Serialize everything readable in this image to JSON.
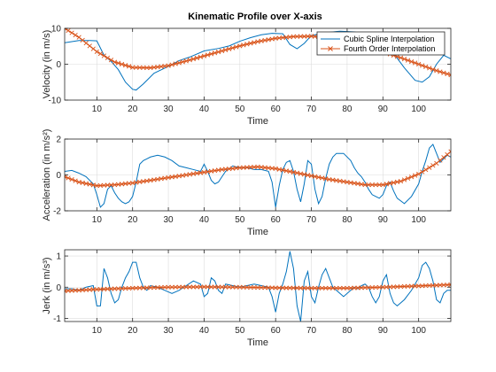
{
  "figure_title": "Kinematic Profile over X-axis",
  "colors": {
    "spline": "#0072BD",
    "fourth": "#D95319",
    "axes": "#262626",
    "grid": "#dcdcdc"
  },
  "legend": {
    "placement": "top-right",
    "entries": [
      "Cubic Spline Interpolation",
      "Fourth Order Interpolation"
    ]
  },
  "chart_data": [
    {
      "type": "line",
      "title": "Kinematic Profile over X-axis",
      "xlabel": "Time",
      "ylabel": "Velocity (in m/s)",
      "xlim": [
        1,
        109
      ],
      "ylim": [
        -10,
        10
      ],
      "xticks": [
        10,
        20,
        30,
        40,
        50,
        60,
        70,
        80,
        90,
        100
      ],
      "yticks": [
        -10,
        0,
        10
      ],
      "grid": true,
      "series": [
        {
          "name": "Cubic Spline Interpolation",
          "x": [
            1,
            5,
            8,
            10,
            12,
            14,
            16,
            18,
            20,
            21,
            23,
            26,
            30,
            33,
            36,
            40,
            44,
            47,
            50,
            53,
            56,
            59,
            62,
            64,
            66,
            68,
            70,
            74,
            78,
            82,
            86,
            90,
            93,
            96,
            99,
            101,
            103,
            105,
            107,
            109
          ],
          "y": [
            6,
            6.6,
            6.6,
            6.5,
            2.5,
            0.8,
            -1.5,
            -5,
            -7,
            -7.2,
            -5.5,
            -2.5,
            -0.6,
            1,
            2,
            3.7,
            4.4,
            5.1,
            6.4,
            7.4,
            8.2,
            8.6,
            8.5,
            5.5,
            4.3,
            5.8,
            8,
            8.8,
            9.2,
            9,
            8.2,
            6.6,
            3,
            -1,
            -4.5,
            -5,
            -3.5,
            0,
            2.5,
            1.5
          ]
        },
        {
          "name": "Fourth Order Interpolation",
          "x": [
            1,
            5,
            10,
            15,
            20,
            25,
            30,
            35,
            40,
            45,
            50,
            55,
            60,
            65,
            70,
            75,
            80,
            85,
            90,
            95,
            100,
            105,
            109
          ],
          "y": [
            10,
            7.5,
            3.5,
            0.6,
            -0.9,
            -1,
            -0.4,
            0.9,
            2.3,
            3.7,
            5.1,
            6.3,
            7.2,
            7.7,
            7.8,
            7.4,
            6.5,
            5.2,
            3.5,
            1.8,
            0,
            -1.8,
            -3
          ]
        }
      ]
    },
    {
      "type": "line",
      "xlabel": "Time",
      "ylabel": "Acceleration (in m/s²)",
      "xlim": [
        1,
        109
      ],
      "ylim": [
        -2,
        2
      ],
      "xticks": [
        10,
        20,
        30,
        40,
        50,
        60,
        70,
        80,
        90,
        100
      ],
      "yticks": [
        -2,
        0,
        2
      ],
      "grid": true,
      "series": [
        {
          "name": "Cubic Spline Interpolation",
          "x": [
            1,
            3,
            5,
            7,
            9,
            10,
            11,
            12,
            13,
            14,
            15,
            16,
            17,
            18,
            19,
            20,
            21,
            22,
            23,
            24,
            25,
            27,
            29,
            31,
            33,
            35,
            37,
            39,
            40,
            41,
            42,
            43,
            44,
            45,
            46,
            48,
            50,
            52,
            54,
            56,
            58,
            59,
            60,
            61,
            62,
            63,
            64,
            65,
            66,
            67,
            68,
            69,
            70,
            71,
            72,
            73,
            74,
            75,
            76,
            77,
            79,
            81,
            82,
            83,
            84,
            85,
            86,
            87,
            88,
            89,
            90,
            91,
            92,
            93,
            94,
            96,
            98,
            100,
            101,
            102,
            103,
            104,
            105,
            106,
            107,
            108,
            109
          ],
          "y": [
            0.2,
            0.25,
            0.1,
            -0.1,
            -0.5,
            -1.1,
            -1.8,
            -1.6,
            -0.8,
            -0.6,
            -1.0,
            -1.3,
            -1.5,
            -1.6,
            -1.5,
            -1.2,
            -0.4,
            0.6,
            0.8,
            0.9,
            1.0,
            1.1,
            1.0,
            0.8,
            0.5,
            0.4,
            0.3,
            0.2,
            0.6,
            0.2,
            -0.3,
            -0.5,
            -0.4,
            -0.1,
            0.2,
            0.5,
            0.4,
            0.4,
            0.3,
            0.3,
            0.2,
            -0.4,
            -1.8,
            -0.6,
            0.3,
            0.7,
            0.8,
            0.2,
            -0.8,
            -1.5,
            -0.5,
            0.8,
            0.6,
            -0.8,
            -1.6,
            -1.2,
            -0.2,
            0.6,
            1.0,
            1.2,
            1.2,
            0.8,
            0.4,
            0.1,
            -0.1,
            -0.4,
            -0.8,
            -1.1,
            -1.2,
            -1.3,
            -1.1,
            -0.6,
            -0.4,
            -0.9,
            -1.3,
            -1.6,
            -1.2,
            -0.5,
            0.2,
            0.8,
            1.5,
            1.7,
            1.2,
            0.7,
            0.9,
            1.1,
            1.0
          ]
        },
        {
          "name": "Fourth Order Interpolation",
          "x": [
            1,
            5,
            10,
            15,
            20,
            25,
            30,
            35,
            40,
            45,
            50,
            55,
            60,
            65,
            70,
            75,
            80,
            85,
            90,
            95,
            100,
            105,
            109
          ],
          "y": [
            -0.1,
            -0.4,
            -0.6,
            -0.55,
            -0.45,
            -0.3,
            -0.15,
            0,
            0.15,
            0.3,
            0.4,
            0.45,
            0.35,
            0.15,
            -0.05,
            -0.25,
            -0.4,
            -0.55,
            -0.55,
            -0.35,
            0.05,
            0.65,
            1.3
          ]
        }
      ]
    },
    {
      "type": "line",
      "xlabel": "Time",
      "ylabel": "Jerk (in m/s³)",
      "xlim": [
        1,
        109
      ],
      "ylim": [
        -1.1,
        1.2
      ],
      "xticks": [
        10,
        20,
        30,
        40,
        50,
        60,
        70,
        80,
        90,
        100
      ],
      "yticks": [
        -1,
        0,
        1
      ],
      "grid": true,
      "series": [
        {
          "name": "Cubic Spline Interpolation",
          "x": [
            1,
            3,
            5,
            7,
            9,
            10,
            11,
            12,
            13,
            14,
            15,
            16,
            17,
            18,
            19,
            20,
            21,
            22,
            23,
            24,
            25,
            27,
            29,
            31,
            33,
            35,
            37,
            39,
            40,
            41,
            42,
            43,
            44,
            45,
            46,
            48,
            50,
            52,
            54,
            56,
            58,
            59,
            60,
            61,
            62,
            63,
            64,
            65,
            66,
            67,
            68,
            69,
            70,
            71,
            72,
            73,
            74,
            75,
            76,
            77,
            79,
            81,
            82,
            83,
            84,
            85,
            86,
            87,
            88,
            89,
            90,
            91,
            92,
            93,
            94,
            96,
            98,
            100,
            101,
            102,
            103,
            104,
            105,
            106,
            107,
            108,
            109
          ],
          "y": [
            -0.05,
            -0.05,
            -0.1,
            0,
            0.05,
            -0.6,
            -0.6,
            0.6,
            0.3,
            -0.2,
            -0.5,
            -0.4,
            0,
            0.3,
            0.5,
            0.8,
            0.8,
            0.3,
            0,
            -0.1,
            0.05,
            0,
            -0.1,
            -0.2,
            -0.1,
            0.05,
            0.2,
            0.1,
            -0.3,
            -0.2,
            0.3,
            0.2,
            -0.1,
            -0.2,
            0.1,
            0.05,
            0,
            0.05,
            0.1,
            0.05,
            0,
            -0.3,
            -0.8,
            -0.2,
            0.1,
            0.5,
            1.15,
            0.6,
            -0.6,
            -1.1,
            0.2,
            0.5,
            -0.3,
            -0.5,
            0,
            0.4,
            0.6,
            0.3,
            0,
            -0.1,
            -0.3,
            -0.1,
            0,
            -0.05,
            0.05,
            0.1,
            0,
            -0.3,
            -0.5,
            -0.3,
            0.2,
            0.4,
            -0.2,
            -0.5,
            -0.6,
            -0.4,
            -0.1,
            0.3,
            0.7,
            0.8,
            0.6,
            0.2,
            -0.4,
            -0.5,
            -0.2,
            -0.1,
            -0.1
          ]
        },
        {
          "name": "Fourth Order Interpolation",
          "x": [
            1,
            10,
            20,
            30,
            40,
            50,
            60,
            70,
            80,
            90,
            100,
            109
          ],
          "y": [
            -0.12,
            -0.07,
            -0.03,
            0,
            0.01,
            0,
            -0.02,
            -0.03,
            -0.03,
            0,
            0.04,
            0.08
          ]
        }
      ]
    }
  ]
}
